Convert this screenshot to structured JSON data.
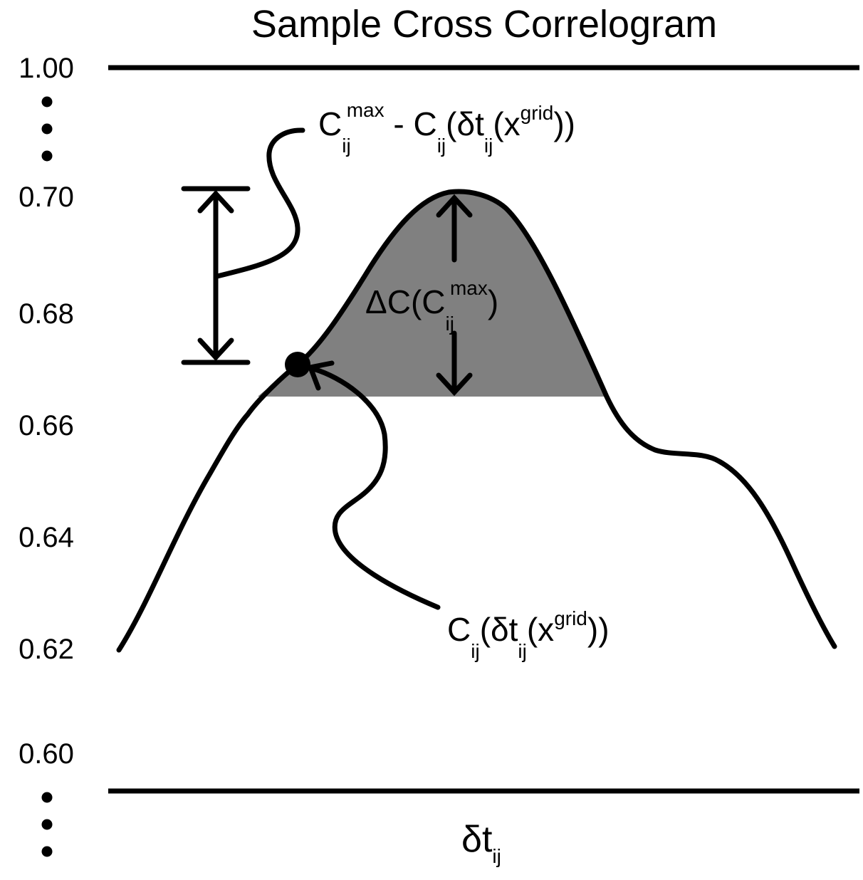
{
  "title": "Sample Cross Correlogram",
  "y_axis": {
    "top_label": "1.00",
    "tick_labels": [
      "0.70",
      "0.68",
      "0.66",
      "0.64",
      "0.62",
      "0.60"
    ],
    "ellipsis": "⋮"
  },
  "x_axis": {
    "label": {
      "main": "δt",
      "sub": "ij"
    }
  },
  "annotations": {
    "difference": {
      "c": "C",
      "c_sub": "ij",
      "c_sup": "max",
      "minus": " - C",
      "minus_sub": "ij",
      "paren": "(δt",
      "paren_sub": "ij",
      "x": "(x",
      "x_sup": "grid",
      "close": "))"
    },
    "delta_c": {
      "delta": "ΔC(C",
      "sub": "ij",
      "sup": "max",
      "close": ")"
    },
    "grid_value": {
      "c": "C",
      "c_sub": "ij",
      "paren": "(δt",
      "paren_sub": "ij",
      "x": "(x",
      "x_sup": "grid",
      "close": "))"
    }
  },
  "colors": {
    "line": "#000000",
    "shaded_region": "#808080",
    "background": "#ffffff"
  }
}
